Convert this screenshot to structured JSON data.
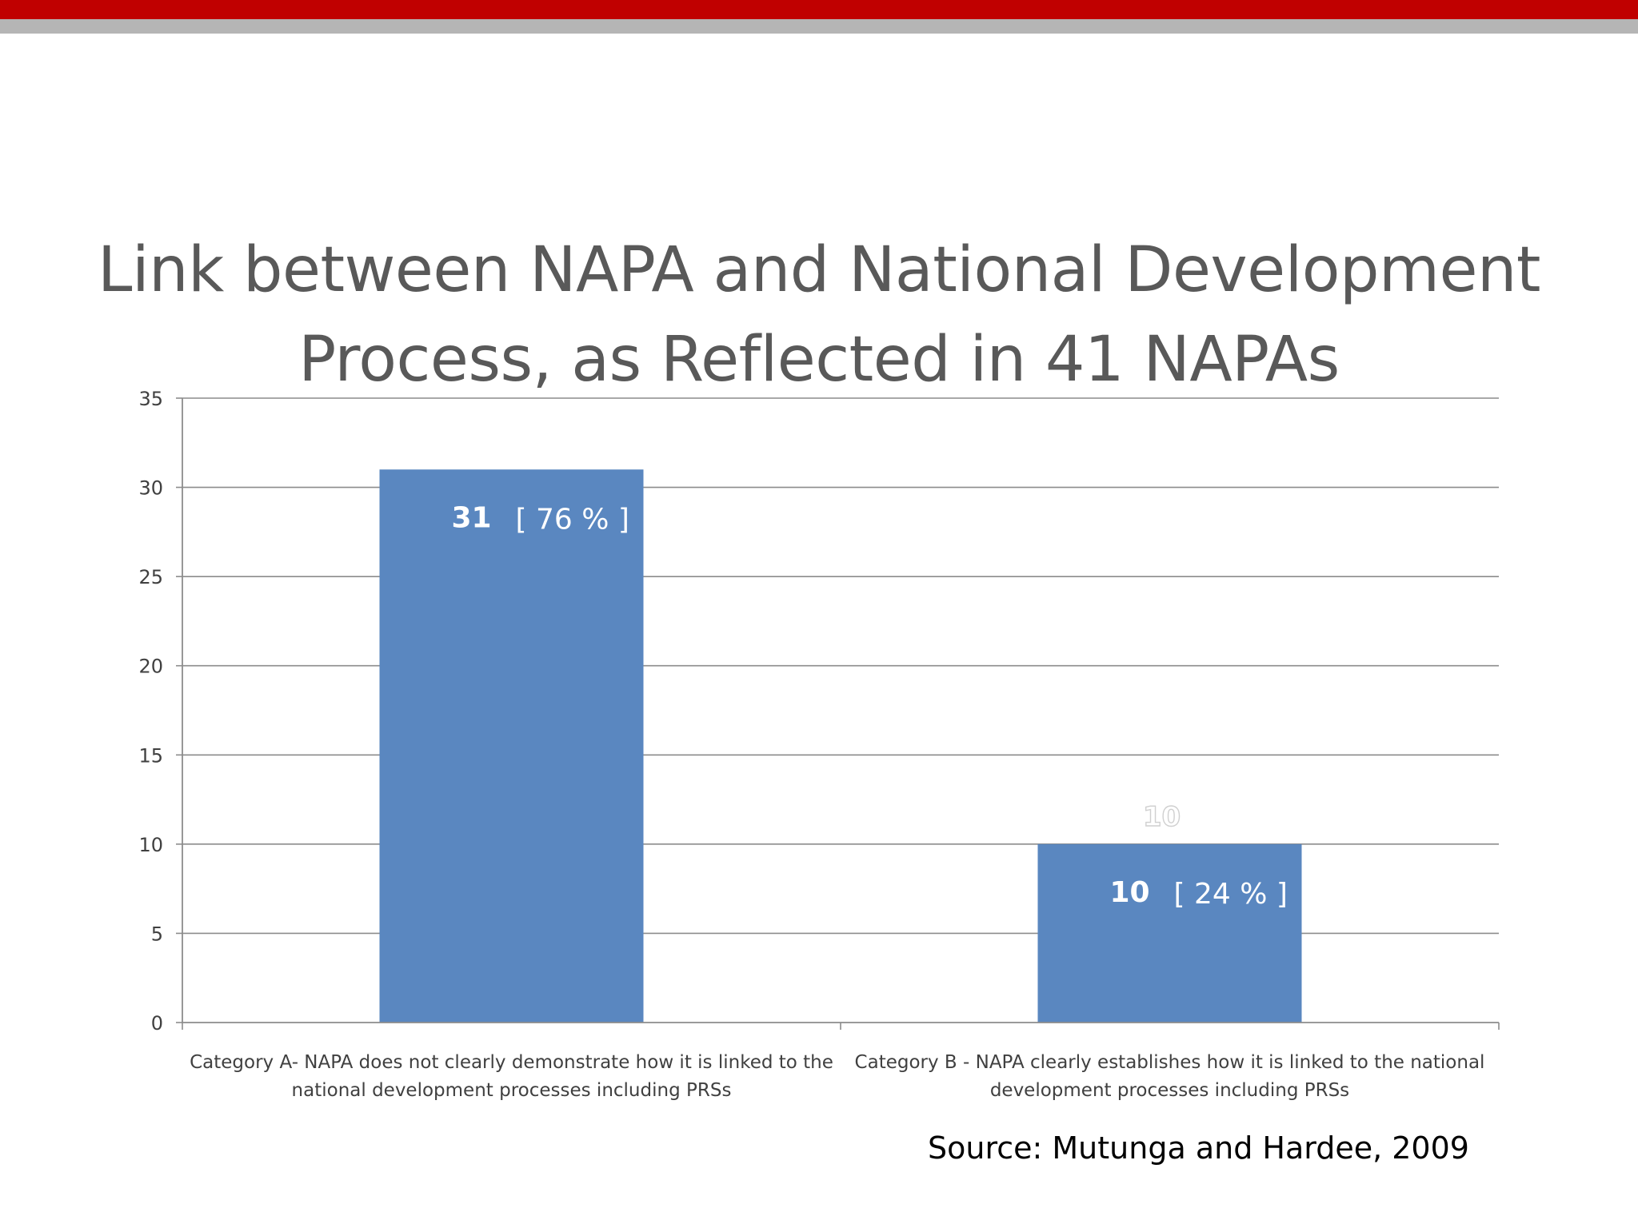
{
  "slide": {
    "title_line1": "Link between NAPA and National Development",
    "title_line2": "Process, as Reflected in 41 NAPAs",
    "source": "Source:  Mutunga and Hardee, 2009"
  },
  "colors": {
    "accent_red": "#c00000",
    "accent_gray": "#b5b5b5",
    "bar": "#5a87c0"
  },
  "chart_data": {
    "type": "bar",
    "title": "Link between NAPA and National Development Process, as Reflected in 41 NAPAs",
    "xlabel": "",
    "ylabel": "",
    "ylim": [
      0,
      35
    ],
    "yticks": [
      0,
      5,
      10,
      15,
      20,
      25,
      30,
      35
    ],
    "grid": true,
    "legend": "none",
    "categories": [
      [
        "Category A- NAPA does not clearly demonstrate how it is linked to the",
        "national development processes including PRSs"
      ],
      [
        "Category B - NAPA clearly establishes how it is linked to  the national",
        "development processes including PRSs"
      ]
    ],
    "values": [
      31,
      10
    ],
    "data_labels": [
      {
        "value": "31",
        "percent": "[ 76 % ]"
      },
      {
        "value": "10",
        "percent": "[ 24 % ]"
      }
    ],
    "extra_label": "10"
  }
}
